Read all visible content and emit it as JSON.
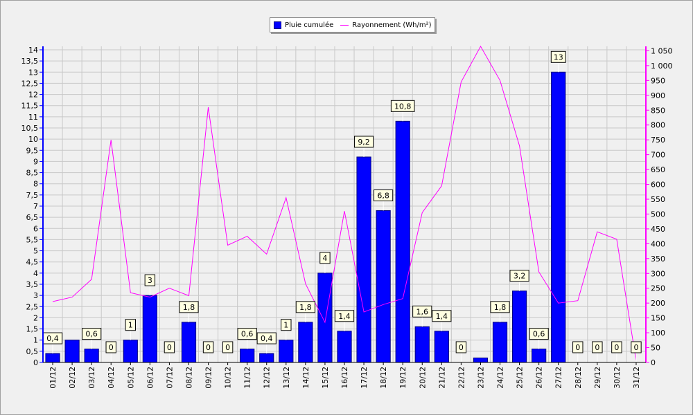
{
  "chart_data": {
    "type": "bar+line",
    "categories": [
      "01/12",
      "02/12",
      "03/12",
      "04/12",
      "05/12",
      "06/12",
      "07/12",
      "08/12",
      "09/12",
      "10/12",
      "11/12",
      "12/12",
      "13/12",
      "14/12",
      "15/12",
      "16/12",
      "17/12",
      "18/12",
      "19/12",
      "20/12",
      "21/12",
      "22/12",
      "23/12",
      "24/12",
      "25/12",
      "26/12",
      "27/12",
      "28/12",
      "29/12",
      "30/12",
      "31/12"
    ],
    "series": [
      {
        "name": "Pluie cumulée",
        "kind": "bar",
        "axis": "left",
        "color": "#0000ff",
        "values": [
          0.4,
          1,
          0.6,
          0,
          1,
          3,
          0,
          1.8,
          0,
          0,
          0.6,
          0.4,
          1,
          1.8,
          4,
          1.4,
          9.2,
          6.8,
          10.8,
          1.6,
          1.4,
          0,
          0.2,
          1.8,
          3.2,
          0.6,
          13,
          0,
          0,
          0,
          0
        ],
        "data_labels": [
          "0,4",
          "",
          "0,6",
          "0",
          "1",
          "3",
          "0",
          "1,8",
          "0",
          "0",
          "0,6",
          "0,4",
          "1",
          "1,8",
          "4",
          "1,4",
          "9,2",
          "6,8",
          "10,8",
          "1,6",
          "1,4",
          "0",
          "",
          "1,8",
          "3,2",
          "0,6",
          "13",
          "0",
          "0",
          "0",
          "0"
        ]
      },
      {
        "name": "Rayonnement (Wh/m²)",
        "kind": "line",
        "axis": "right",
        "color": "#ff00ff",
        "values": [
          205,
          220,
          280,
          750,
          235,
          220,
          250,
          225,
          860,
          395,
          425,
          365,
          555,
          265,
          135,
          510,
          170,
          195,
          215,
          505,
          595,
          945,
          1065,
          950,
          730,
          305,
          200,
          208,
          440,
          415,
          5
        ]
      }
    ],
    "left_axis": {
      "min": 0,
      "max": 14,
      "step": 0.5,
      "tick_labels": [
        "0",
        "0,5",
        "1",
        "1,5",
        "2",
        "2,5",
        "3",
        "3,5",
        "4",
        "4,5",
        "5",
        "5,5",
        "6",
        "6,5",
        "7",
        "7,5",
        "8",
        "8,5",
        "9",
        "9,5",
        "10",
        "10,5",
        "11",
        "11,5",
        "12",
        "12,5",
        "13",
        "13,5",
        "14"
      ],
      "color": "#0000ff"
    },
    "right_axis": {
      "min": 0,
      "max": 1065,
      "step": 50,
      "tick_labels": [
        "0",
        "50",
        "100",
        "150",
        "200",
        "250",
        "300",
        "350",
        "400",
        "450",
        "500",
        "550",
        "600",
        "650",
        "700",
        "750",
        "800",
        "850",
        "900",
        "950",
        "1 000",
        "1 050"
      ],
      "color": "#ff00ff"
    },
    "grid": true,
    "legend_position": "top-center"
  }
}
